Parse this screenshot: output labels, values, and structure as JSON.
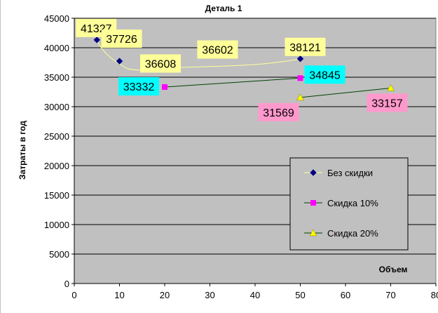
{
  "chart_data": {
    "type": "scatter",
    "title": "Деталь 1",
    "xlabel": "Объем",
    "ylabel": "Затраты в год",
    "xlim": [
      0,
      80
    ],
    "ylim": [
      0,
      45000
    ],
    "x_ticks": [
      0,
      10,
      20,
      30,
      40,
      50,
      60,
      70,
      80
    ],
    "y_ticks": [
      0,
      5000,
      10000,
      15000,
      20000,
      25000,
      30000,
      35000,
      40000,
      45000
    ],
    "grid": "horizontal",
    "plot_background": "#c0c0c0",
    "legend_position": "right-middle",
    "series": [
      {
        "name": "Без скидки",
        "marker": "diamond",
        "color": "#000080",
        "line_color": "#ffff99",
        "label_bg": "#ffff99",
        "points": [
          {
            "x": 5,
            "y": 41327,
            "label": "41327"
          },
          {
            "x": 10,
            "y": 37726,
            "label": "37726"
          },
          {
            "x": 20,
            "y": 36608,
            "label": "36608"
          },
          {
            "x": 21,
            "y": 36602,
            "label": "36602"
          },
          {
            "x": 50,
            "y": 38121,
            "label": "38121"
          }
        ]
      },
      {
        "name": "Скидка 10%",
        "marker": "square",
        "color": "#ff00ff",
        "line_color": "#004000",
        "label_bg": "#00ffff",
        "points": [
          {
            "x": 20,
            "y": 33332,
            "label": "33332"
          },
          {
            "x": 50,
            "y": 34845,
            "label": "34845"
          }
        ]
      },
      {
        "name": "Скидка 20%",
        "marker": "triangle",
        "color": "#ffff00",
        "line_color": "#004000",
        "label_bg": "#ff99cc",
        "points": [
          {
            "x": 50,
            "y": 31569,
            "label": "31569"
          },
          {
            "x": 70,
            "y": 33157,
            "label": "33157"
          }
        ]
      }
    ]
  }
}
